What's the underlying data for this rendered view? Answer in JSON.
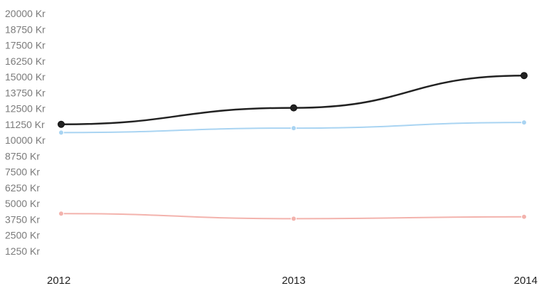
{
  "chart_data": {
    "type": "line",
    "title": "",
    "xlabel": "",
    "ylabel": "",
    "categories": [
      "2012",
      "2013",
      "2014"
    ],
    "ylim": [
      0,
      20000
    ],
    "y_ticks": [
      {
        "value": 1250,
        "label": "1250 Kr"
      },
      {
        "value": 2500,
        "label": "2500 Kr"
      },
      {
        "value": 3750,
        "label": "3750 Kr"
      },
      {
        "value": 5000,
        "label": "5000 Kr"
      },
      {
        "value": 6250,
        "label": "6250 Kr"
      },
      {
        "value": 7500,
        "label": "7500 Kr"
      },
      {
        "value": 8750,
        "label": "8750 Kr"
      },
      {
        "value": 10000,
        "label": "10000 Kr"
      },
      {
        "value": 11250,
        "label": "11250 Kr"
      },
      {
        "value": 12500,
        "label": "12500 Kr"
      },
      {
        "value": 13750,
        "label": "13750 Kr"
      },
      {
        "value": 15000,
        "label": "15000 Kr"
      },
      {
        "value": 16250,
        "label": "16250 Kr"
      },
      {
        "value": 17500,
        "label": "17500 Kr"
      },
      {
        "value": 18750,
        "label": "18750 Kr"
      },
      {
        "value": 20000,
        "label": "20000 Kr"
      }
    ],
    "grid": false,
    "legend": "none",
    "series": [
      {
        "color": "#222222",
        "values": [
          11250,
          12550,
          15100
        ]
      },
      {
        "color": "#a9d4f2",
        "values": [
          10600,
          10950,
          11400
        ]
      },
      {
        "color": "#f3b3ad",
        "values": [
          4200,
          3800,
          3950
        ]
      }
    ]
  }
}
